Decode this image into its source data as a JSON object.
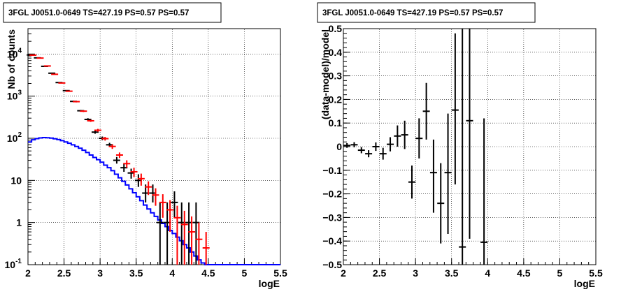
{
  "chart_data": [
    {
      "type": "histogram",
      "title": "3FGL J0051.0-0649 TS=427.19 PS=0.57 PS=0.57",
      "xlabel": "logE",
      "ylabel": "Nb of counts",
      "xlim": [
        2,
        5.5
      ],
      "ylim": [
        0.1,
        40000
      ],
      "ylog": true,
      "grid": true,
      "xticks": [
        "2",
        "2.5",
        "3",
        "3.5",
        "4",
        "4.5",
        "5",
        "5.5"
      ],
      "ytick_labels": [
        {
          "value": 0.1,
          "base": "10",
          "exp": "-1"
        },
        {
          "value": 1,
          "base": "1",
          "exp": ""
        },
        {
          "value": 10,
          "base": "10",
          "exp": ""
        },
        {
          "value": 100,
          "base": "10",
          "exp": "2"
        },
        {
          "value": 1000,
          "base": "10",
          "exp": "3"
        },
        {
          "value": 10000,
          "base": "10",
          "exp": "4"
        }
      ],
      "series": [
        {
          "color": "#000000",
          "style": "points",
          "x": [
            2.05,
            2.15,
            2.25,
            2.35,
            2.45,
            2.55,
            2.65,
            2.75,
            2.85,
            2.95,
            3.05,
            3.15,
            3.25,
            3.35,
            3.45,
            3.55,
            3.65,
            3.75,
            3.85,
            3.95,
            4.05,
            4.15,
            4.25,
            4.35
          ],
          "y": [
            9500,
            8100,
            5100,
            3500,
            2100,
            1350,
            750,
            450,
            280,
            140,
            100,
            70,
            30,
            20,
            15,
            10,
            5,
            5,
            1,
            1,
            3,
            1,
            1,
            1
          ],
          "ylo": [
            9400,
            8000,
            5000,
            3440,
            2050,
            1310,
            720,
            430,
            260,
            128,
            90,
            62,
            25,
            16,
            11,
            7,
            3,
            3,
            0.1,
            0.1,
            1.3,
            0.1,
            0.1,
            0.1
          ],
          "yhi": [
            9600,
            8200,
            5200,
            3560,
            2150,
            1390,
            780,
            470,
            300,
            152,
            110,
            78,
            36,
            25,
            19,
            14,
            8,
            8,
            3,
            3,
            5.5,
            3,
            3,
            3
          ]
        },
        {
          "color": "#ff0000",
          "style": "points",
          "x": [
            2.05,
            2.15,
            2.25,
            2.35,
            2.45,
            2.55,
            2.65,
            2.75,
            2.85,
            2.95,
            3.05,
            3.15,
            3.25,
            3.35,
            3.45,
            3.55,
            3.65,
            3.75,
            3.85,
            3.95,
            4.05,
            4.15,
            4.25,
            4.35,
            4.45
          ],
          "y": [
            9400,
            8000,
            5200,
            3300,
            2050,
            1310,
            740,
            440,
            260,
            155,
            98,
            64,
            40,
            25,
            16,
            11,
            7,
            4.5,
            3,
            2,
            1.3,
            0.9,
            0.6,
            0.4,
            0.25
          ],
          "ylo": [
            9300,
            7900,
            5130,
            3240,
            2000,
            1270,
            710,
            420,
            245,
            143,
            88,
            56,
            34,
            20,
            12,
            7.5,
            4.5,
            2.5,
            1.3,
            0.6,
            0.1,
            0.1,
            0.1,
            0.1,
            0.1
          ],
          "yhi": [
            9500,
            8100,
            5270,
            3360,
            2100,
            1350,
            770,
            460,
            275,
            167,
            108,
            72,
            46,
            30,
            20,
            14.5,
            9.5,
            6.5,
            4.7,
            3.4,
            2.5,
            1.9,
            1.4,
            1.0,
            0.6
          ]
        },
        {
          "color": "#0000ff",
          "style": "step",
          "edges": [
            2.0,
            2.05,
            2.1,
            2.15,
            2.2,
            2.25,
            2.3,
            2.35,
            2.4,
            2.45,
            2.5,
            2.55,
            2.6,
            2.65,
            2.7,
            2.75,
            2.8,
            2.85,
            2.9,
            2.95,
            3.0,
            3.05,
            3.1,
            3.15,
            3.2,
            3.25,
            3.3,
            3.35,
            3.4,
            3.45,
            3.5,
            3.55,
            3.6,
            3.65,
            3.7,
            3.75,
            3.8,
            3.85,
            3.9,
            3.95,
            4.0,
            4.05,
            4.1,
            4.15,
            4.2,
            4.25,
            4.3,
            4.35,
            4.4,
            4.45,
            4.5,
            5.5
          ],
          "values": [
            82,
            92,
            98,
            102,
            104,
            103,
            101,
            97,
            93,
            88,
            82,
            76,
            70,
            64,
            58,
            52,
            46,
            40,
            35,
            31,
            27,
            23,
            20,
            17,
            14,
            11.5,
            9.5,
            7.8,
            6.3,
            5.1,
            4.1,
            3.3,
            2.6,
            2.1,
            1.7,
            1.4,
            1.15,
            0.95,
            0.8,
            0.65,
            0.55,
            0.45,
            0.37,
            0.3,
            0.25,
            0.2,
            0.16,
            0.13,
            0.11,
            0.1,
            0.1
          ]
        }
      ]
    },
    {
      "type": "scatter",
      "title": "3FGL J0051.0-0649 TS=427.19 PS=0.57 PS=0.57",
      "xlabel": "logE",
      "ylabel": "(data-model)/model",
      "xlim": [
        2,
        5.5
      ],
      "ylim": [
        -0.5,
        0.5
      ],
      "grid": true,
      "xticks": [
        "2",
        "2.5",
        "3",
        "3.5",
        "4",
        "4.5",
        "5",
        "5.5"
      ],
      "yticks": [
        "−0.5",
        "−0.4",
        "−0.3",
        "−0.2",
        "−0.1",
        "0",
        "0.1",
        "0.2",
        "0.3",
        "0.4",
        "0.5"
      ],
      "series": [
        {
          "color": "#000000",
          "x": [
            2.05,
            2.15,
            2.25,
            2.35,
            2.45,
            2.55,
            2.65,
            2.75,
            2.85,
            2.95,
            3.05,
            3.15,
            3.25,
            3.35,
            3.45,
            3.55,
            3.65,
            3.75,
            3.95
          ],
          "y": [
            0.005,
            0.008,
            -0.015,
            -0.03,
            0.0,
            -0.03,
            0.01,
            0.045,
            0.05,
            -0.15,
            0.035,
            0.15,
            -0.11,
            -0.24,
            -0.11,
            0.155,
            -0.425,
            0.11,
            -0.405
          ],
          "ylo": [
            -0.005,
            -0.003,
            -0.028,
            -0.045,
            -0.018,
            -0.055,
            -0.02,
            0.0,
            -0.01,
            -0.22,
            -0.05,
            0.03,
            -0.28,
            -0.41,
            -0.37,
            -0.16,
            -0.5,
            -0.39,
            -0.5
          ],
          "yhi": [
            0.015,
            0.019,
            -0.002,
            -0.015,
            0.018,
            -0.005,
            0.04,
            0.09,
            0.11,
            -0.08,
            0.12,
            0.27,
            0.03,
            -0.07,
            0.14,
            0.48,
            0.5,
            0.5,
            0.12
          ]
        }
      ]
    }
  ]
}
